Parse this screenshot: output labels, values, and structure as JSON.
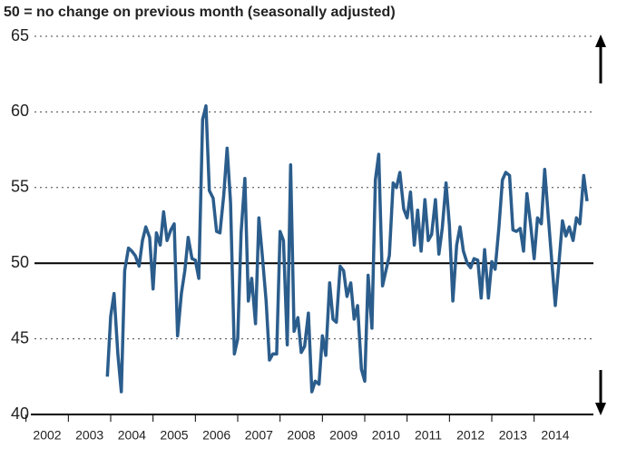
{
  "chart_data": {
    "type": "line",
    "title": "50 = no change on previous month (seasonally adjusted)",
    "color": "#2b5d8c",
    "grid": true,
    "hline": 50,
    "ylim": [
      40,
      65
    ],
    "yticks": [
      40,
      45,
      50,
      55,
      60,
      65
    ],
    "xlim": [
      2002.2,
      2015.4
    ],
    "xticks": [
      {
        "value": 2002.5,
        "label": "2002"
      },
      {
        "value": 2003.5,
        "label": "2003"
      },
      {
        "value": 2004.5,
        "label": "2004"
      },
      {
        "value": 2005.5,
        "label": "2005"
      },
      {
        "value": 2006.5,
        "label": "2006"
      },
      {
        "value": 2007.5,
        "label": "2007"
      },
      {
        "value": 2008.5,
        "label": "2008"
      },
      {
        "value": 2009.5,
        "label": "2009"
      },
      {
        "value": 2010.5,
        "label": "2010"
      },
      {
        "value": 2011.5,
        "label": "2011"
      },
      {
        "value": 2012.5,
        "label": "2012"
      },
      {
        "value": 2013.5,
        "label": "2013"
      },
      {
        "value": 2014.5,
        "label": "2014"
      }
    ],
    "x": [
      2003.92,
      2004.0,
      2004.08,
      2004.17,
      2004.25,
      2004.33,
      2004.42,
      2004.5,
      2004.58,
      2004.67,
      2004.75,
      2004.83,
      2004.92,
      2005.0,
      2005.08,
      2005.17,
      2005.25,
      2005.33,
      2005.42,
      2005.5,
      2005.58,
      2005.67,
      2005.75,
      2005.83,
      2005.92,
      2006.0,
      2006.08,
      2006.17,
      2006.25,
      2006.33,
      2006.42,
      2006.5,
      2006.58,
      2006.67,
      2006.75,
      2006.83,
      2006.92,
      2007.0,
      2007.08,
      2007.17,
      2007.25,
      2007.33,
      2007.42,
      2007.5,
      2007.58,
      2007.67,
      2007.75,
      2007.83,
      2007.92,
      2008.0,
      2008.08,
      2008.17,
      2008.25,
      2008.33,
      2008.42,
      2008.5,
      2008.58,
      2008.67,
      2008.75,
      2008.83,
      2008.92,
      2009.0,
      2009.08,
      2009.17,
      2009.25,
      2009.33,
      2009.42,
      2009.5,
      2009.58,
      2009.67,
      2009.75,
      2009.83,
      2009.92,
      2010.0,
      2010.08,
      2010.17,
      2010.25,
      2010.33,
      2010.42,
      2010.5,
      2010.58,
      2010.67,
      2010.75,
      2010.83,
      2010.92,
      2011.0,
      2011.08,
      2011.17,
      2011.25,
      2011.33,
      2011.42,
      2011.5,
      2011.58,
      2011.67,
      2011.75,
      2011.83,
      2011.92,
      2012.0,
      2012.08,
      2012.17,
      2012.25,
      2012.33,
      2012.42,
      2012.5,
      2012.58,
      2012.67,
      2012.75,
      2012.83,
      2012.92,
      2013.0,
      2013.08,
      2013.17,
      2013.25,
      2013.33,
      2013.42,
      2013.5,
      2013.58,
      2013.67,
      2013.75,
      2013.83,
      2013.92,
      2014.0,
      2014.08,
      2014.17,
      2014.25,
      2014.33,
      2014.42,
      2014.5,
      2014.58,
      2014.67,
      2014.75,
      2014.83,
      2014.92,
      2015.0,
      2015.08,
      2015.17,
      2015.25
    ],
    "values": [
      42.5,
      46.5,
      48,
      44,
      41.5,
      49.5,
      51,
      50.8,
      50.5,
      49.8,
      51.5,
      52.4,
      51.7,
      48.3,
      52,
      51.2,
      53.4,
      51.5,
      52.2,
      52.6,
      45.2,
      48,
      49.5,
      51.7,
      50.3,
      50.2,
      49,
      59.5,
      60.4,
      54.8,
      54.3,
      52.1,
      52,
      54.5,
      57.6,
      54,
      44,
      45,
      52,
      55.6,
      47.5,
      49,
      46,
      53,
      50.5,
      47.5,
      43.6,
      44,
      44,
      52.1,
      51.5,
      44.6,
      56.5,
      45.5,
      46.4,
      44.1,
      44.5,
      46.7,
      41.5,
      42.2,
      42,
      45.2,
      43.9,
      48.7,
      46.3,
      46.1,
      49.8,
      49.5,
      47.8,
      48.7,
      46.3,
      47.2,
      43,
      42.2,
      49.2,
      45.7,
      55.5,
      57.2,
      48.5,
      49.5,
      50.5,
      55.3,
      55,
      56,
      53.6,
      53,
      54.7,
      51.2,
      53.5,
      50.8,
      54.2,
      51.5,
      51.9,
      54.2,
      50.6,
      52.3,
      55.3,
      52.5,
      47.5,
      51.2,
      52.4,
      50.8,
      50,
      49.7,
      50.3,
      50.2,
      47.7,
      50.9,
      47.7,
      50.1,
      49.6,
      52.4,
      55.5,
      56,
      55.8,
      52.2,
      52.1,
      52.3,
      50.8,
      54.6,
      52.5,
      50.3,
      53,
      52.6,
      56.2,
      53.2,
      50,
      47.2,
      49.8,
      52.8,
      51.8,
      52.4,
      51.5,
      53,
      52.6,
      55.8,
      54.1
    ]
  }
}
